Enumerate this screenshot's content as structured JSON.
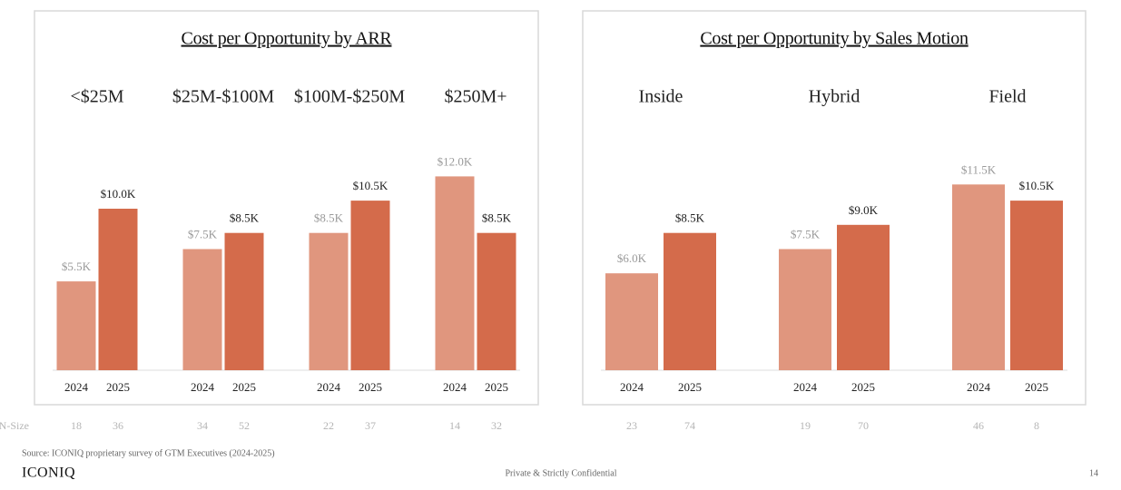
{
  "chart_data": [
    {
      "type": "bar",
      "title": "Cost per Opportunity by ARR",
      "groups": [
        "<$25M",
        "$25M-$100M",
        "$100M-$250M",
        "$250M+"
      ],
      "series": [
        {
          "name": "2024",
          "color": "#e0967e",
          "values": [
            5.5,
            7.5,
            8.5,
            12.0
          ],
          "value_labels": [
            "$5.5K",
            "$7.5K",
            "$8.5K",
            "$12.0K"
          ],
          "n_size": [
            18,
            34,
            22,
            14
          ]
        },
        {
          "name": "2025",
          "color": "#d46b4b",
          "values": [
            10.0,
            8.5,
            10.5,
            8.5
          ],
          "value_labels": [
            "$10.0K",
            "$8.5K",
            "$10.5K",
            "$8.5K"
          ],
          "n_size": [
            36,
            52,
            37,
            32
          ]
        }
      ]
    },
    {
      "type": "bar",
      "title": "Cost per Opportunity by Sales Motion",
      "groups": [
        "Inside",
        "Hybrid",
        "Field"
      ],
      "series": [
        {
          "name": "2024",
          "color": "#e0967e",
          "values": [
            6.0,
            7.5,
            11.5
          ],
          "value_labels": [
            "$6.0K",
            "$7.5K",
            "$11.5K"
          ],
          "n_size": [
            23,
            19,
            46
          ]
        },
        {
          "name": "2025",
          "color": "#d46b4b",
          "values": [
            8.5,
            9.0,
            10.5
          ],
          "value_labels": [
            "$8.5K",
            "$9.0K",
            "$10.5K"
          ],
          "n_size": [
            74,
            70,
            8
          ]
        }
      ]
    }
  ],
  "n_size_label": "N-Size",
  "footer": {
    "source": "Source: ICONIQ proprietary survey of GTM Executives (2024-2025)",
    "brand": "ICONIQ",
    "confidential": "Private & Strictly Confidential",
    "page": "14"
  }
}
